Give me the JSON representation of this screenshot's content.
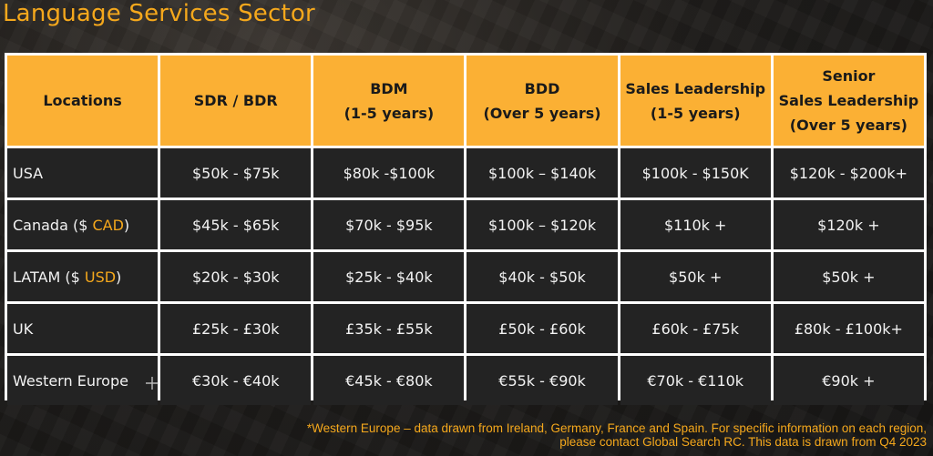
{
  "title": "Language Services Sector",
  "headers": [
    {
      "lines": [
        "Locations"
      ]
    },
    {
      "lines": [
        "SDR / BDR"
      ]
    },
    {
      "lines": [
        "BDM",
        "(1-5 years)"
      ]
    },
    {
      "lines": [
        "BDD",
        "(Over 5 years)"
      ]
    },
    {
      "lines": [
        "Sales Leadership",
        "(1-5 years)"
      ]
    },
    {
      "lines": [
        "Senior",
        "Sales Leadership",
        "(Over 5 years)"
      ]
    }
  ],
  "rows": [
    {
      "location": "USA",
      "location_currency": "",
      "location_suffix": "",
      "values": [
        "$50k - $75k",
        "$80k -$100k",
        "$100k – $140k",
        "$100k - $150K",
        "$120k - $200k+"
      ]
    },
    {
      "location": "Canada ($ ",
      "location_currency": "CAD",
      "location_suffix": ")",
      "values": [
        "$45k - $65k",
        "$70k - $95k",
        "$100k – $120k",
        "$110k +",
        "$120k +"
      ]
    },
    {
      "location": "LATAM ($ ",
      "location_currency": "USD",
      "location_suffix": ")",
      "values": [
        "$20k - $30k",
        "$25k - $40k",
        "$40k - $50k",
        "$50k +",
        "$50k +"
      ]
    },
    {
      "location": "UK",
      "location_currency": "",
      "location_suffix": "",
      "values": [
        "£25k - £30k",
        "£35k - £55k",
        "£50k - £60k",
        "£60k - £75k",
        "£80k - £100k+"
      ]
    },
    {
      "location": "Western Europe",
      "location_currency": "",
      "location_suffix": "",
      "values": [
        "€30k - €40k",
        "€45k - €80k",
        "€55k - €90k",
        "€70k - €110k",
        "€90k +"
      ]
    }
  ],
  "footnote": {
    "line1": "*Western Europe – data drawn from Ireland, Germany, France and Spain. For specific information on each region,",
    "line2": "please contact Global Search RC. This data is drawn from Q4 2023"
  },
  "colors": {
    "accent": "#f5a81c",
    "header_bg": "#fbb034",
    "cell_bg": "#232323",
    "grid": "#ffffff"
  }
}
